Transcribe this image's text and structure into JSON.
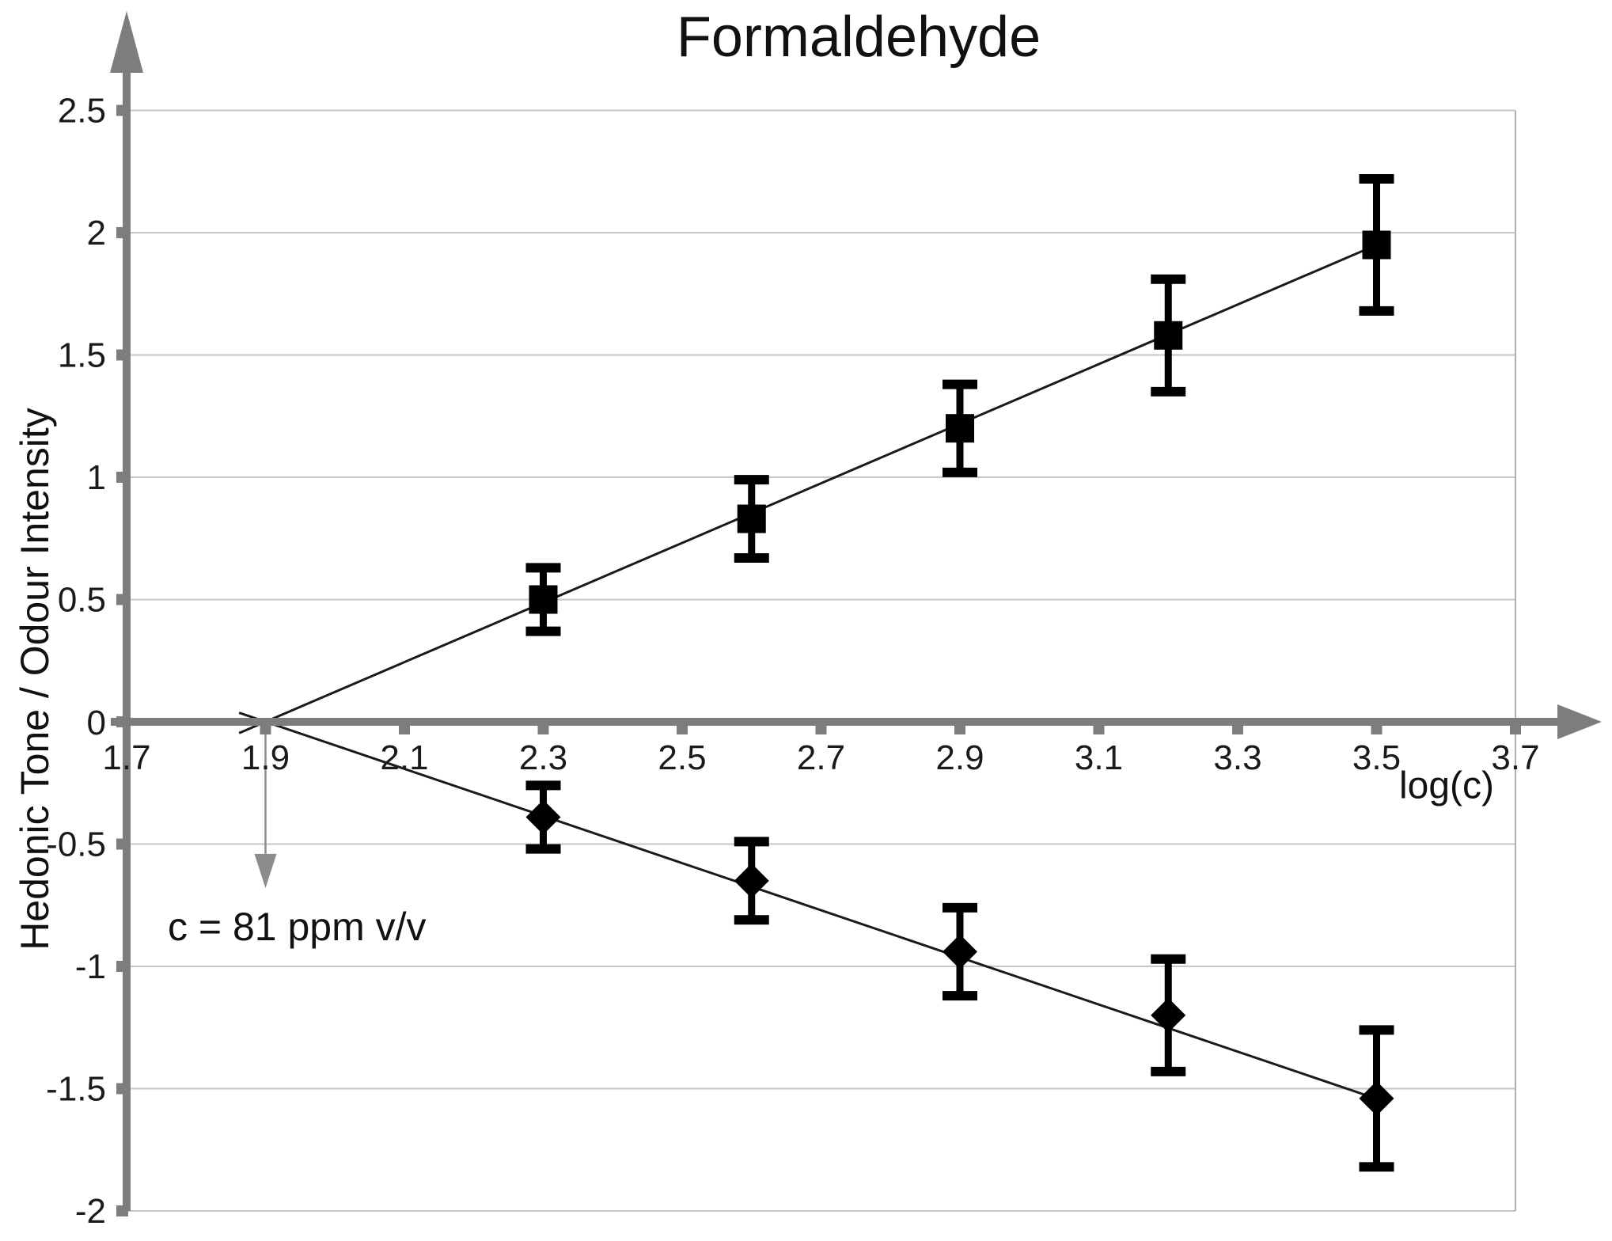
{
  "title": "Formaldehyde",
  "axes": {
    "y_label": "Hedonic Tone / Odour Intensity",
    "x_label": "log(c)"
  },
  "annotation": {
    "text": "c = 81 ppm v/v"
  },
  "chart_data": {
    "type": "scatter",
    "title": "Formaldehyde",
    "xlabel": "log(c)",
    "ylabel": "Hedonic Tone / Odour Intensity",
    "xlim": [
      1.7,
      3.75
    ],
    "ylim": [
      -2.0,
      2.75
    ],
    "grid": "horizontal-only",
    "legend": "none",
    "x_ticks": [
      1.7,
      1.9,
      2.1,
      2.3,
      2.5,
      2.7,
      2.9,
      3.1,
      3.3,
      3.5,
      3.7
    ],
    "x_tick_labels": [
      "1.7",
      "1.9",
      "2.1",
      "2.3",
      "2.5",
      "2.7",
      "2.9",
      "3.1",
      "3.3",
      "3.5",
      "3.7"
    ],
    "y_ticks": [
      2.5,
      2.0,
      1.5,
      1.0,
      0.5,
      0.0,
      -0.5,
      -1.0,
      -1.5,
      -2.0
    ],
    "y_tick_labels": [
      "2.5",
      "2",
      "1.5",
      "1",
      "0.5",
      "0",
      "-0.5",
      "-1",
      "-1.5",
      "-2"
    ],
    "series": [
      {
        "name": "Odour Intensity",
        "marker": "square",
        "color": "#000000",
        "x": [
          2.3,
          2.6,
          2.9,
          3.2,
          3.5
        ],
        "y": [
          0.5,
          0.83,
          1.2,
          1.58,
          1.95
        ],
        "yerr": [
          0.13,
          0.16,
          0.18,
          0.23,
          0.27
        ],
        "trendline": {
          "x1": 1.862,
          "y1": -0.046,
          "x2": 3.505,
          "y2": 1.956
        }
      },
      {
        "name": "Hedonic Tone",
        "marker": "diamond",
        "color": "#000000",
        "x": [
          2.3,
          2.6,
          2.9,
          3.2,
          3.5
        ],
        "y": [
          -0.39,
          -0.65,
          -0.94,
          -1.2,
          -1.54
        ],
        "yerr": [
          0.13,
          0.16,
          0.18,
          0.23,
          0.28
        ],
        "trendline": {
          "x1": 1.862,
          "y1": 0.037,
          "x2": 3.51,
          "y2": -1.551
        }
      }
    ],
    "annotation": {
      "text": "c = 81 ppm v/v",
      "arrow_x": 1.9,
      "arrow_y_from": 0.0,
      "arrow_y_line_to": -0.54,
      "arrow_y_tip": -0.68
    },
    "colors": {
      "axis": "#7d7d7d",
      "grid": "#c6c6c6",
      "plot_border": "#aeaeae",
      "marker": "#000000",
      "trend": "#1a1a1a",
      "arrow": "#8c8c8c",
      "tick_text": "#1a1a1a"
    }
  }
}
